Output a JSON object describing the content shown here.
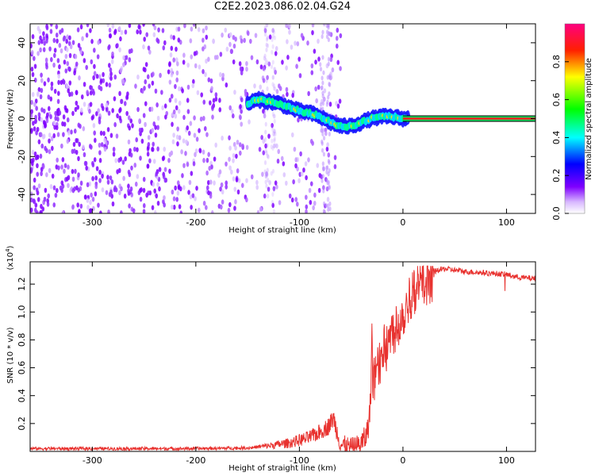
{
  "figure": {
    "title": "C2E2.2023.086.02.04.G24"
  },
  "chart_data": [
    {
      "type": "heatmap",
      "title": "C2E2.2023.086.02.04.G24",
      "xlabel": "Height of straight line (km)",
      "ylabel": "Frequency (Hz)",
      "xlim": [
        -360,
        128
      ],
      "ylim": [
        -50,
        50
      ],
      "xticks": [
        -300,
        -200,
        -100,
        0,
        100
      ],
      "yticks": [
        -40,
        -20,
        0,
        20,
        40
      ],
      "colorbar": {
        "label": "Normalized spectral amplitude",
        "range": [
          0.0,
          1.0
        ],
        "ticks": [
          0.0,
          0.2,
          0.4,
          0.6,
          0.8
        ],
        "colors": [
          "#ffffff",
          "#7f00ff",
          "#0000ff",
          "#00ffff",
          "#00ff00",
          "#ffff00",
          "#ff0000",
          "#ff0080"
        ]
      },
      "ridge": {
        "x": [
          -150,
          -140,
          -130,
          -120,
          -110,
          -100,
          -90,
          -80,
          -70,
          -60,
          -50,
          -40,
          -30,
          -20,
          -10,
          0,
          128
        ],
        "y": [
          8,
          10,
          9,
          8,
          6,
          4,
          3,
          1,
          -2,
          -4,
          -4,
          -2,
          0,
          1,
          1,
          0,
          0
        ]
      }
    },
    {
      "type": "line",
      "xlabel": "Height of straight line (km)",
      "ylabel": "SNR (10 * v/v)",
      "yscale_label": "(x10",
      "yscale_exp": "4",
      "yscale_close": ")",
      "xlim": [
        -360,
        128
      ],
      "ylim": [
        0,
        1.36
      ],
      "xticks": [
        -300,
        -200,
        -100,
        0,
        100
      ],
      "yticks": [
        0.2,
        0.4,
        0.6,
        0.8,
        1.0,
        1.2
      ],
      "ytick_labels": [
        "0.2",
        "0.4",
        "0.6",
        "0.8",
        "1.0",
        "1.2"
      ],
      "color": "#e8322f",
      "series": [
        {
          "x": [
            -360,
            -300,
            -200,
            -150,
            -130,
            -110,
            -100,
            -90,
            -80,
            -72,
            -67,
            -64,
            -60,
            -50,
            -45,
            -40,
            -36,
            -33,
            -31,
            -30,
            -29,
            -27,
            -25,
            -23,
            -20,
            -15,
            -10,
            -5,
            0,
            5,
            10,
            15,
            20,
            25,
            30,
            40,
            50,
            60,
            80,
            100,
            110,
            128
          ],
          "y": [
            0.02,
            0.02,
            0.02,
            0.025,
            0.04,
            0.06,
            0.08,
            0.1,
            0.14,
            0.18,
            0.24,
            0.15,
            0.05,
            0.02,
            0.03,
            0.06,
            0.1,
            0.2,
            0.4,
            0.95,
            0.45,
            0.6,
            0.72,
            0.65,
            0.75,
            0.8,
            0.9,
            0.95,
            1.02,
            1.12,
            1.18,
            1.22,
            1.25,
            1.27,
            1.29,
            1.31,
            1.3,
            1.29,
            1.28,
            1.27,
            1.25,
            1.24
          ]
        }
      ]
    }
  ]
}
